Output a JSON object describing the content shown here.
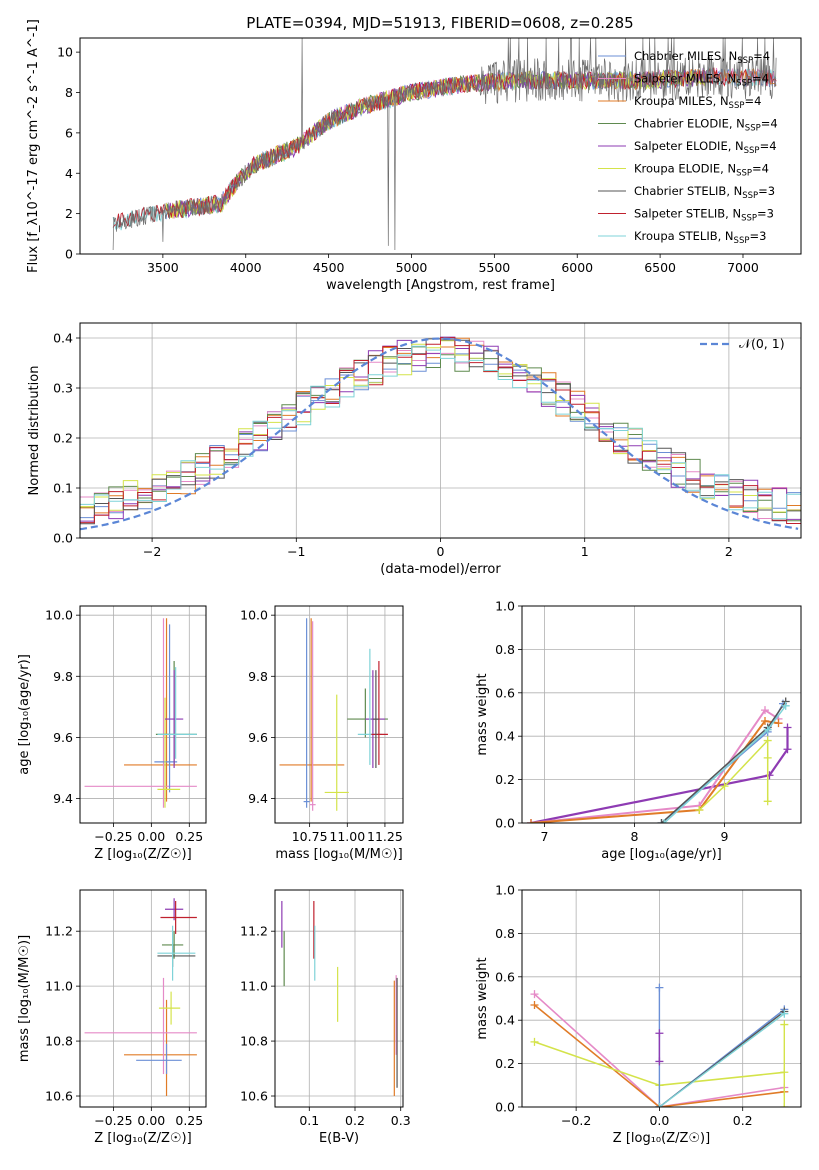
{
  "colors": {
    "chabrier_miles": "#6b8fd6",
    "salpeter_miles": "#e58ac7",
    "kroupa_miles": "#e07b27",
    "chabrier_elodie": "#5f8a4f",
    "salpeter_elodie": "#8e3bb3",
    "kroupa_elodie": "#d4e34a",
    "chabrier_stelib": "#555555",
    "salpeter_stelib": "#c0212e",
    "kroupa_stelib": "#7fd3d8",
    "normal_curve": "#5b86d6"
  },
  "chart_data": [
    {
      "id": "spectrum",
      "type": "line",
      "title": "PLATE=0394, MJD=51913, FIBERID=0608, z=0.285",
      "xlabel": "wavelength [Angstrom, rest frame]",
      "ylabel": "Flux [f_λ10^-17 erg cm^-2 s^-1 A^-1]",
      "xlim": [
        3000,
        7350
      ],
      "ylim": [
        0,
        10.7
      ],
      "xticks": [
        "3500",
        "4000",
        "4500",
        "5000",
        "5500",
        "6000",
        "6500",
        "7000"
      ],
      "yticks": [
        "0",
        "2",
        "4",
        "6",
        "8",
        "10"
      ],
      "grid": false,
      "legend_position": "top-right",
      "legend": [
        {
          "label": "Chabrier MILES, N",
          "sub": "SSP",
          "tail": "=4",
          "color_key": "chabrier_miles"
        },
        {
          "label": "Salpeter MILES, N",
          "sub": "SSP",
          "tail": "=4",
          "color_key": "salpeter_miles"
        },
        {
          "label": "Kroupa MILES, N",
          "sub": "SSP",
          "tail": "=4",
          "color_key": "kroupa_miles"
        },
        {
          "label": "Chabrier ELODIE, N",
          "sub": "SSP",
          "tail": "=4",
          "color_key": "chabrier_elodie"
        },
        {
          "label": "Salpeter ELODIE, N",
          "sub": "SSP",
          "tail": "=4",
          "color_key": "salpeter_elodie"
        },
        {
          "label": "Kroupa ELODIE, N",
          "sub": "SSP",
          "tail": "=4",
          "color_key": "kroupa_elodie"
        },
        {
          "label": "Chabrier STELIB, N",
          "sub": "SSP",
          "tail": "=3",
          "color_key": "chabrier_stelib"
        },
        {
          "label": "Salpeter STELIB, N",
          "sub": "SSP",
          "tail": "=3",
          "color_key": "salpeter_stelib"
        },
        {
          "label": "Kroupa STELIB, N",
          "sub": "SSP",
          "tail": "=3",
          "color_key": "kroupa_stelib"
        }
      ],
      "continuum": {
        "x": [
          3200,
          3500,
          3850,
          3950,
          4050,
          4300,
          4500,
          4700,
          5000,
          5300,
          5600,
          6000,
          6400,
          6800,
          7200
        ],
        "y": [
          1.5,
          2.1,
          2.5,
          3.6,
          4.4,
          5.3,
          6.6,
          7.3,
          8.0,
          8.4,
          8.6,
          8.6,
          8.6,
          8.8,
          8.7
        ]
      }
    },
    {
      "id": "residuals",
      "type": "line",
      "xlabel": "(data-model)/error",
      "ylabel": "Normed distribution",
      "xlim": [
        -2.5,
        2.5
      ],
      "ylim": [
        0,
        0.43
      ],
      "xticks": [
        "−2",
        "−1",
        "0",
        "1",
        "2"
      ],
      "yticks": [
        "0.0",
        "0.1",
        "0.2",
        "0.3",
        "0.4"
      ],
      "grid": true,
      "legend_position": "top-right",
      "legend_label": "𝒩(0, 1)",
      "normal_mean": 0,
      "normal_sigma": 1
    },
    {
      "id": "z_age",
      "type": "scatter",
      "xlabel": "Z [log₁₀(Z/Z☉)]",
      "ylabel": "age  [log₁₀(age/yr)]",
      "xlim": [
        -0.47,
        0.36
      ],
      "ylim": [
        9.32,
        10.03
      ],
      "xticks": [
        "−0.25",
        "0.00",
        "0.25"
      ],
      "yticks": [
        "9.4",
        "9.6",
        "9.8",
        "10.0"
      ],
      "grid": true,
      "points": [
        {
          "x": 0.1,
          "y": 9.51,
          "xerr": [
            0.28,
            0.2
          ],
          "yerr": [
            0.12,
            0.48
          ],
          "color_key": "kroupa_miles"
        },
        {
          "x": 0.08,
          "y": 9.44,
          "xerr": [
            0.52,
            0.22
          ],
          "yerr": [
            0.07,
            0.55
          ],
          "color_key": "salpeter_miles"
        },
        {
          "x": 0.12,
          "y": 9.52,
          "xerr": [
            0.1,
            0.05
          ],
          "yerr": [
            0.1,
            0.45
          ],
          "color_key": "chabrier_miles"
        },
        {
          "x": 0.09,
          "y": 9.43,
          "xerr": [
            0.05,
            0.1
          ],
          "yerr": [
            0.06,
            0.3
          ],
          "color_key": "kroupa_elodie"
        },
        {
          "x": 0.15,
          "y": 9.61,
          "xerr": [
            0.12,
            0.15
          ],
          "yerr": [
            0.1,
            0.24
          ],
          "color_key": "chabrier_elodie"
        },
        {
          "x": 0.15,
          "y": 9.66,
          "xerr": [
            0.06,
            0.06
          ],
          "yerr": [
            0.16,
            0.16
          ],
          "color_key": "salpeter_elodie"
        },
        {
          "x": 0.16,
          "y": 9.61,
          "xerr": [
            0.12,
            0.14
          ],
          "yerr": [
            0.08,
            0.22
          ],
          "color_key": "kroupa_stelib"
        }
      ]
    },
    {
      "id": "mass_age",
      "type": "scatter",
      "xlabel": "mass [log₁₀(M/M☉)]",
      "ylabel": "",
      "xlim": [
        10.52,
        11.37
      ],
      "ylim": [
        9.32,
        10.03
      ],
      "xticks": [
        "10.75",
        "11.00",
        "11.25"
      ],
      "yticks": [
        "9.4",
        "9.6",
        "9.8",
        "10.0"
      ],
      "grid": true,
      "points": [
        {
          "x": 10.76,
          "y": 9.51,
          "xerr": [
            0.21,
            0.22
          ],
          "yerr": [
            0.12,
            0.48
          ],
          "color_key": "kroupa_miles"
        },
        {
          "x": 10.73,
          "y": 9.39,
          "xerr": [
            0.02,
            0.02
          ],
          "yerr": [
            0.02,
            0.6
          ],
          "color_key": "chabrier_miles"
        },
        {
          "x": 10.77,
          "y": 9.38,
          "xerr": [
            0.02,
            0.02
          ],
          "yerr": [
            0.02,
            0.6
          ],
          "color_key": "salpeter_miles"
        },
        {
          "x": 10.93,
          "y": 9.42,
          "xerr": [
            0.08,
            0.08
          ],
          "yerr": [
            0.06,
            0.32
          ],
          "color_key": "kroupa_elodie"
        },
        {
          "x": 11.12,
          "y": 9.66,
          "xerr": [
            0.12,
            0.15
          ],
          "yerr": [
            0.06,
            0.1
          ],
          "color_key": "chabrier_elodie"
        },
        {
          "x": 11.17,
          "y": 9.66,
          "xerr": [
            0.05,
            0.08
          ],
          "yerr": [
            0.16,
            0.16
          ],
          "color_key": "salpeter_elodie"
        },
        {
          "x": 11.15,
          "y": 9.61,
          "xerr": [
            0.08,
            0.08
          ],
          "yerr": [
            0.1,
            0.28
          ],
          "color_key": "kroupa_stelib"
        },
        {
          "x": 11.21,
          "y": 9.61,
          "xerr": [
            0.05,
            0.06
          ],
          "yerr": [
            0.1,
            0.24
          ],
          "color_key": "salpeter_stelib"
        },
        {
          "x": 11.19,
          "y": 9.66,
          "xerr": [
            0.02,
            0.02
          ],
          "yerr": [
            0.16,
            0.16
          ],
          "color_key": "chabrier_stelib"
        }
      ]
    },
    {
      "id": "age_weights",
      "type": "line",
      "xlabel": "age  [log₁₀(age/yr)]",
      "ylabel": "mass weight",
      "xlim": [
        6.75,
        9.85
      ],
      "ylim": [
        0,
        1.0
      ],
      "xticks": [
        "7",
        "8",
        "9"
      ],
      "yticks": [
        "0.0",
        "0.2",
        "0.4",
        "0.6",
        "0.8",
        "1.0"
      ],
      "grid": true,
      "series": [
        {
          "color_key": "salpeter_elodie",
          "x": [
            6.85,
            9.5,
            9.7,
            9.7
          ],
          "y": [
            0.0,
            0.22,
            0.34,
            0.44
          ],
          "width": 2.2
        },
        {
          "color_key": "salpeter_miles",
          "x": [
            6.85,
            8.72,
            9.45,
            9.6
          ],
          "y": [
            0.0,
            0.08,
            0.52,
            0.48
          ],
          "width": 2.0
        },
        {
          "color_key": "kroupa_miles",
          "x": [
            6.85,
            8.72,
            9.45,
            9.6
          ],
          "y": [
            0.0,
            0.06,
            0.47,
            0.46
          ],
          "width": 2.0
        },
        {
          "color_key": "kroupa_elodie",
          "x": [
            8.72,
            9.0,
            9.48,
            9.48,
            9.48
          ],
          "y": [
            0.06,
            0.17,
            0.38,
            0.3,
            0.1
          ],
          "width": 1.5
        },
        {
          "color_key": "chabrier_miles",
          "x": [
            8.3,
            9.48,
            9.65
          ],
          "y": [
            0.0,
            0.42,
            0.55
          ],
          "width": 1.5
        },
        {
          "color_key": "chabrier_stelib",
          "x": [
            8.3,
            9.48,
            9.68
          ],
          "y": [
            0.0,
            0.44,
            0.56
          ],
          "width": 1.5
        },
        {
          "color_key": "kroupa_stelib",
          "x": [
            8.33,
            9.48,
            9.68
          ],
          "y": [
            0.0,
            0.43,
            0.54
          ],
          "width": 1.5
        }
      ]
    },
    {
      "id": "z_mass",
      "type": "scatter",
      "xlabel": "Z [log₁₀(Z/Z☉)]",
      "ylabel": "mass [log₁₀(M/M☉)]",
      "xlim": [
        -0.47,
        0.36
      ],
      "ylim": [
        10.56,
        11.35
      ],
      "xticks": [
        "−0.25",
        "0.00",
        "0.25"
      ],
      "yticks": [
        "10.6",
        "10.8",
        "11.0",
        "11.2"
      ],
      "grid": true,
      "points": [
        {
          "x": 0.1,
          "y": 10.75,
          "xerr": [
            0.28,
            0.2
          ],
          "yerr": [
            0.15,
            0.2
          ],
          "color_key": "kroupa_miles"
        },
        {
          "x": 0.08,
          "y": 10.83,
          "xerr": [
            0.52,
            0.22
          ],
          "yerr": [
            0.15,
            0.2
          ],
          "color_key": "salpeter_miles"
        },
        {
          "x": 0.1,
          "y": 10.73,
          "xerr": [
            0.2,
            0.1
          ],
          "yerr": [
            0.05,
            0.06
          ],
          "color_key": "chabrier_miles"
        },
        {
          "x": 0.13,
          "y": 10.92,
          "xerr": [
            0.08,
            0.06
          ],
          "yerr": [
            0.06,
            0.06
          ],
          "color_key": "kroupa_elodie"
        },
        {
          "x": 0.15,
          "y": 11.15,
          "xerr": [
            0.08,
            0.06
          ],
          "yerr": [
            0.05,
            0.05
          ],
          "color_key": "chabrier_elodie"
        },
        {
          "x": 0.15,
          "y": 11.28,
          "xerr": [
            0.06,
            0.06
          ],
          "yerr": [
            0.04,
            0.04
          ],
          "color_key": "salpeter_elodie"
        },
        {
          "x": 0.16,
          "y": 11.25,
          "xerr": [
            0.1,
            0.14
          ],
          "yerr": [
            0.06,
            0.06
          ],
          "color_key": "salpeter_stelib"
        },
        {
          "x": 0.14,
          "y": 11.11,
          "xerr": [
            0.1,
            0.15
          ],
          "yerr": [
            0.04,
            0.04
          ],
          "color_key": "chabrier_stelib"
        },
        {
          "x": 0.14,
          "y": 11.12,
          "xerr": [
            0.1,
            0.15
          ],
          "yerr": [
            0.1,
            0.1
          ],
          "color_key": "kroupa_stelib"
        }
      ]
    },
    {
      "id": "ebv_mass",
      "type": "scatter",
      "xlabel": "E(B-V)",
      "ylabel": "",
      "xlim": [
        0.025,
        0.305
      ],
      "ylim": [
        10.56,
        11.35
      ],
      "xticks": [
        "0.1",
        "0.2",
        "0.3"
      ],
      "yticks": [
        "10.6",
        "10.8",
        "11.0",
        "11.2"
      ],
      "grid": true,
      "points": [
        {
          "x": 0.04,
          "y": 11.2,
          "yerr": [
            0.06,
            0.11
          ],
          "color_key": "salpeter_elodie"
        },
        {
          "x": 0.045,
          "y": 11.1,
          "yerr": [
            0.1,
            0.1
          ],
          "color_key": "chabrier_elodie"
        },
        {
          "x": 0.11,
          "y": 11.2,
          "yerr": [
            0.1,
            0.11
          ],
          "color_key": "salpeter_stelib"
        },
        {
          "x": 0.112,
          "y": 11.12,
          "yerr": [
            0.1,
            0.1
          ],
          "color_key": "kroupa_stelib"
        },
        {
          "x": 0.162,
          "y": 10.97,
          "yerr": [
            0.1,
            0.1
          ],
          "color_key": "kroupa_elodie"
        },
        {
          "x": 0.286,
          "y": 10.8,
          "yerr": [
            0.2,
            0.22
          ],
          "color_key": "kroupa_miles"
        },
        {
          "x": 0.29,
          "y": 10.9,
          "yerr": [
            0.15,
            0.14
          ],
          "color_key": "salpeter_miles"
        },
        {
          "x": 0.292,
          "y": 10.85,
          "yerr": [
            0.22,
            0.18
          ],
          "color_key": "chabrier_stelib"
        }
      ]
    },
    {
      "id": "z_weights",
      "type": "line",
      "xlabel": "Z [log₁₀(Z/Z☉)]",
      "ylabel": "mass weight",
      "xlim": [
        -0.33,
        0.34
      ],
      "ylim": [
        0,
        1.0
      ],
      "xticks": [
        "−0.2",
        "0.0",
        "0.2"
      ],
      "yticks": [
        "0.0",
        "0.2",
        "0.4",
        "0.6",
        "0.8",
        "1.0"
      ],
      "grid": true,
      "series": [
        {
          "color_key": "salpeter_miles",
          "x": [
            -0.3,
            0.0,
            0.3
          ],
          "y": [
            0.52,
            0.0,
            0.09
          ],
          "width": 1.6
        },
        {
          "color_key": "kroupa_miles",
          "x": [
            -0.3,
            0.0,
            0.3
          ],
          "y": [
            0.47,
            0.0,
            0.07
          ],
          "width": 1.6
        },
        {
          "color_key": "kroupa_elodie",
          "x": [
            -0.3,
            0.0,
            0.3
          ],
          "y": [
            0.3,
            0.1,
            0.16
          ],
          "width": 1.6
        },
        {
          "color_key": "chabrier_miles",
          "x": [
            0.0,
            0.0,
            0.3
          ],
          "y": [
            0.55,
            0.0,
            0.45
          ],
          "width": 1.4
        },
        {
          "color_key": "chabrier_stelib",
          "x": [
            0.0,
            0.3
          ],
          "y": [
            0.0,
            0.44
          ],
          "width": 1.4
        },
        {
          "color_key": "kroupa_stelib",
          "x": [
            0.0,
            0.3
          ],
          "y": [
            0.0,
            0.43
          ],
          "width": 1.4
        },
        {
          "color_key": "kroupa_elodie",
          "x": [
            0.3,
            0.3
          ],
          "y": [
            0.38,
            0.0
          ],
          "width": 1.4
        },
        {
          "color_key": "salpeter_elodie",
          "x": [
            0.0,
            0.0
          ],
          "y": [
            0.34,
            0.21
          ],
          "width": 1.4
        }
      ]
    }
  ]
}
